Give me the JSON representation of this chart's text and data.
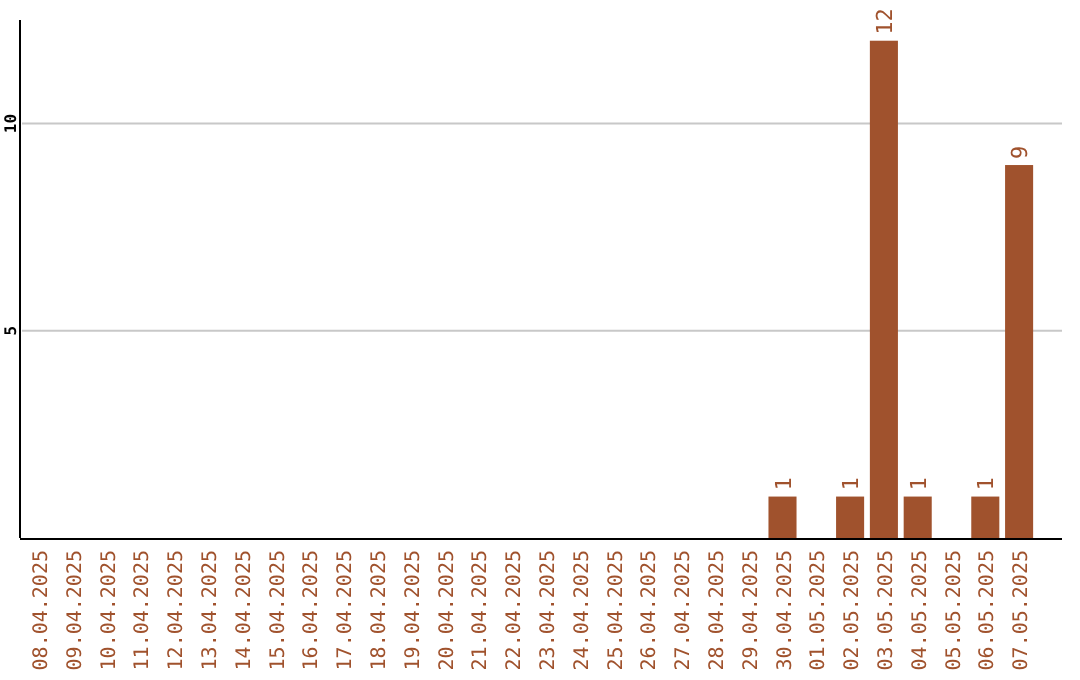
{
  "chart_data": {
    "type": "bar",
    "categories": [
      "08.04.2025",
      "09.04.2025",
      "10.04.2025",
      "11.04.2025",
      "12.04.2025",
      "13.04.2025",
      "14.04.2025",
      "15.04.2025",
      "16.04.2025",
      "17.04.2025",
      "18.04.2025",
      "19.04.2025",
      "20.04.2025",
      "21.04.2025",
      "22.04.2025",
      "23.04.2025",
      "24.04.2025",
      "25.04.2025",
      "26.04.2025",
      "27.04.2025",
      "28.04.2025",
      "29.04.2025",
      "30.04.2025",
      "01.05.2025",
      "02.05.2025",
      "03.05.2025",
      "04.05.2025",
      "05.05.2025",
      "06.05.2025",
      "07.05.2025"
    ],
    "values": [
      null,
      null,
      null,
      null,
      null,
      null,
      null,
      null,
      null,
      null,
      null,
      null,
      null,
      null,
      null,
      null,
      null,
      null,
      null,
      null,
      null,
      null,
      1,
      null,
      1,
      12,
      1,
      null,
      1,
      9
    ],
    "color": "#a0522d",
    "ylim": [
      0,
      12.5
    ],
    "yticks": [
      5,
      10
    ],
    "grid": "y",
    "data_labels": true
  }
}
